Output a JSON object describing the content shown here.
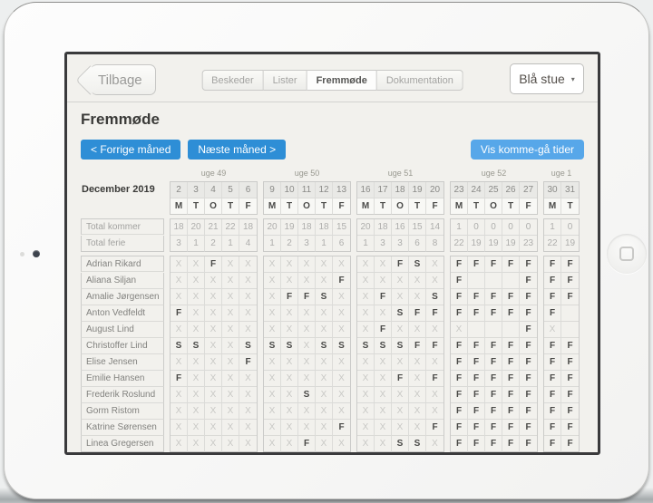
{
  "nav": {
    "back_label": "Tilbage",
    "tabs": [
      {
        "label": "Beskeder",
        "active": false
      },
      {
        "label": "Lister",
        "active": false
      },
      {
        "label": "Fremmøde",
        "active": true
      },
      {
        "label": "Dokumentation",
        "active": false
      }
    ],
    "room_selector": {
      "value": "Blå stue",
      "caret_icon": "▾"
    }
  },
  "page": {
    "title": "Fremmøde",
    "prev_button": "<  Forrige måned",
    "next_button": "Næste måned  >",
    "show_times_button": "Vis komme-gå tider"
  },
  "colors": {
    "accent_blue": "#2e8ed6",
    "accent_blue_light": "#57a7e9",
    "status_bold": "#494947",
    "status_absent": "#c8c8c5"
  },
  "attendance": {
    "month_label": "December 2019",
    "weeks": [
      {
        "label": "uge 49",
        "dates": [
          "2",
          "3",
          "4",
          "5",
          "6"
        ],
        "days": [
          "M",
          "T",
          "O",
          "T",
          "F"
        ]
      },
      {
        "label": "uge 50",
        "dates": [
          "9",
          "10",
          "11",
          "12",
          "13"
        ],
        "days": [
          "M",
          "T",
          "O",
          "T",
          "F"
        ]
      },
      {
        "label": "uge 51",
        "dates": [
          "16",
          "17",
          "18",
          "19",
          "20"
        ],
        "days": [
          "M",
          "T",
          "O",
          "T",
          "F"
        ]
      },
      {
        "label": "uge 52",
        "dates": [
          "23",
          "24",
          "25",
          "26",
          "27"
        ],
        "days": [
          "M",
          "T",
          "O",
          "T",
          "F"
        ]
      },
      {
        "label": "uge 1",
        "dates": [
          "30",
          "31"
        ],
        "days": [
          "M",
          "T"
        ]
      }
    ],
    "summary_rows": [
      {
        "label": "Total kommer",
        "values": [
          [
            "18",
            "20",
            "21",
            "22",
            "18"
          ],
          [
            "20",
            "19",
            "18",
            "18",
            "15"
          ],
          [
            "20",
            "18",
            "16",
            "15",
            "14"
          ],
          [
            "1",
            "0",
            "0",
            "0",
            "0"
          ],
          [
            "1",
            "0"
          ]
        ]
      },
      {
        "label": "Total ferie",
        "values": [
          [
            "3",
            "1",
            "2",
            "1",
            "4"
          ],
          [
            "1",
            "2",
            "3",
            "1",
            "6"
          ],
          [
            "1",
            "3",
            "3",
            "6",
            "8"
          ],
          [
            "22",
            "19",
            "19",
            "19",
            "23"
          ],
          [
            "22",
            "19"
          ]
        ]
      }
    ],
    "children": [
      {
        "name": "Adrian Rikard",
        "values": [
          [
            "X",
            "X",
            "F",
            "X",
            "X"
          ],
          [
            "X",
            "X",
            "X",
            "X",
            "X"
          ],
          [
            "X",
            "X",
            "F",
            "S",
            "X"
          ],
          [
            "F",
            "F",
            "F",
            "F",
            "F"
          ],
          [
            "F",
            "F"
          ]
        ]
      },
      {
        "name": "Aliana Siljan",
        "values": [
          [
            "X",
            "X",
            "X",
            "X",
            "X"
          ],
          [
            "X",
            "X",
            "X",
            "X",
            "F"
          ],
          [
            "X",
            "X",
            "X",
            "X",
            "X"
          ],
          [
            "F",
            "",
            "",
            "",
            "F"
          ],
          [
            "F",
            "F"
          ]
        ]
      },
      {
        "name": "Amalie Jørgensen",
        "values": [
          [
            "X",
            "X",
            "X",
            "X",
            "X"
          ],
          [
            "X",
            "F",
            "F",
            "S",
            "X"
          ],
          [
            "X",
            "F",
            "X",
            "X",
            "S"
          ],
          [
            "F",
            "F",
            "F",
            "F",
            "F"
          ],
          [
            "F",
            "F"
          ]
        ]
      },
      {
        "name": "Anton Vedfeldt",
        "values": [
          [
            "F",
            "X",
            "X",
            "X",
            "X"
          ],
          [
            "X",
            "X",
            "X",
            "X",
            "X"
          ],
          [
            "X",
            "X",
            "S",
            "F",
            "F"
          ],
          [
            "F",
            "F",
            "F",
            "F",
            "F"
          ],
          [
            "F",
            ""
          ]
        ]
      },
      {
        "name": "August Lind",
        "values": [
          [
            "X",
            "X",
            "X",
            "X",
            "X"
          ],
          [
            "X",
            "X",
            "X",
            "X",
            "X"
          ],
          [
            "X",
            "F",
            "X",
            "X",
            "X"
          ],
          [
            "X",
            "",
            "",
            "",
            "F"
          ],
          [
            "X",
            ""
          ]
        ]
      },
      {
        "name": "Christoffer Lind",
        "values": [
          [
            "S",
            "S",
            "X",
            "X",
            "S"
          ],
          [
            "S",
            "S",
            "X",
            "S",
            "S"
          ],
          [
            "S",
            "S",
            "S",
            "F",
            "F"
          ],
          [
            "F",
            "F",
            "F",
            "F",
            "F"
          ],
          [
            "F",
            "F"
          ]
        ]
      },
      {
        "name": "Elise Jensen",
        "values": [
          [
            "X",
            "X",
            "X",
            "X",
            "F"
          ],
          [
            "X",
            "X",
            "X",
            "X",
            "X"
          ],
          [
            "X",
            "X",
            "X",
            "X",
            "X"
          ],
          [
            "F",
            "F",
            "F",
            "F",
            "F"
          ],
          [
            "F",
            "F"
          ]
        ]
      },
      {
        "name": "Emilie Hansen",
        "values": [
          [
            "F",
            "X",
            "X",
            "X",
            "X"
          ],
          [
            "X",
            "X",
            "X",
            "X",
            "X"
          ],
          [
            "X",
            "X",
            "F",
            "X",
            "F"
          ],
          [
            "F",
            "F",
            "F",
            "F",
            "F"
          ],
          [
            "F",
            "F"
          ]
        ]
      },
      {
        "name": "Frederik Roslund",
        "values": [
          [
            "X",
            "X",
            "X",
            "X",
            "X"
          ],
          [
            "X",
            "X",
            "S",
            "X",
            "X"
          ],
          [
            "X",
            "X",
            "X",
            "X",
            "X"
          ],
          [
            "F",
            "F",
            "F",
            "F",
            "F"
          ],
          [
            "F",
            "F"
          ]
        ]
      },
      {
        "name": "Gorm Ristom",
        "values": [
          [
            "X",
            "X",
            "X",
            "X",
            "X"
          ],
          [
            "X",
            "X",
            "X",
            "X",
            "X"
          ],
          [
            "X",
            "X",
            "X",
            "X",
            "X"
          ],
          [
            "F",
            "F",
            "F",
            "F",
            "F"
          ],
          [
            "F",
            "F"
          ]
        ]
      },
      {
        "name": "Katrine Sørensen",
        "values": [
          [
            "X",
            "X",
            "X",
            "X",
            "X"
          ],
          [
            "X",
            "X",
            "X",
            "X",
            "F"
          ],
          [
            "X",
            "X",
            "X",
            "X",
            "F"
          ],
          [
            "F",
            "F",
            "F",
            "F",
            "F"
          ],
          [
            "F",
            "F"
          ]
        ]
      },
      {
        "name": "Linea Gregersen",
        "values": [
          [
            "X",
            "X",
            "X",
            "X",
            "X"
          ],
          [
            "X",
            "X",
            "F",
            "X",
            "X"
          ],
          [
            "X",
            "X",
            "S",
            "S",
            "X"
          ],
          [
            "F",
            "F",
            "F",
            "F",
            "F"
          ],
          [
            "F",
            "F"
          ]
        ]
      }
    ]
  }
}
